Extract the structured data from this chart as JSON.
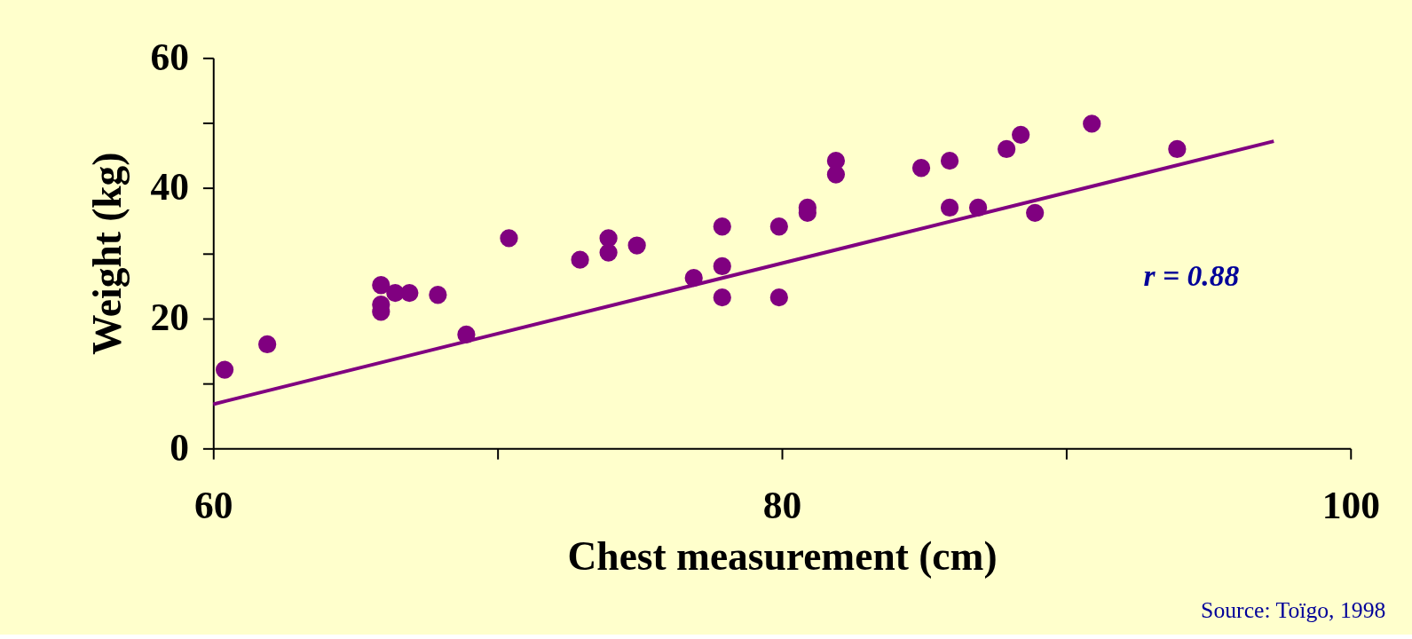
{
  "chart_data": {
    "type": "scatter",
    "xlabel": "Chest measurement (cm)",
    "ylabel": "Weight (kg)",
    "xlim": [
      60,
      100
    ],
    "xticks": [
      60,
      {
        "value": 70,
        "label": null
      },
      80,
      {
        "value": 90,
        "label": null
      },
      100
    ],
    "ylim": [
      0,
      60
    ],
    "yticks": [
      0,
      {
        "value": 10,
        "label": null
      },
      20,
      {
        "value": 30,
        "label": null
      },
      40,
      {
        "value": 50,
        "label": null
      },
      60
    ],
    "marker": "circle",
    "line_style": "solid",
    "series": [
      {
        "color": "#800080",
        "x": [
          60.4,
          61.9,
          65.9,
          65.9,
          65.9,
          66.4,
          66.9,
          67.9,
          68.9,
          70.4,
          72.9,
          73.9,
          73.9,
          74.9,
          76.9,
          77.9,
          77.9,
          77.9,
          79.9,
          79.9,
          80.9,
          80.9,
          81.9,
          81.9,
          84.9,
          85.9,
          85.9,
          86.9,
          87.9,
          88.4,
          88.9,
          90.9,
          93.9
        ],
        "values": [
          12.1,
          16.0,
          25.1,
          22.1,
          21.0,
          23.9,
          23.9,
          23.6,
          17.5,
          32.3,
          29.0,
          32.3,
          30.1,
          31.2,
          26.2,
          34.1,
          28.0,
          23.2,
          34.1,
          23.2,
          37.0,
          36.2,
          44.2,
          42.1,
          43.1,
          44.2,
          37.0,
          37.0,
          46.0,
          48.2,
          36.2,
          49.9,
          46.0
        ]
      },
      {
        "type": "line",
        "marker": "none",
        "color": "#800080",
        "x": [
          60,
          97.3
        ],
        "values": [
          6.8,
          47.2
        ]
      }
    ],
    "annotations": [
      "r = 0.88",
      "Source: Toïgo, 1998"
    ]
  }
}
